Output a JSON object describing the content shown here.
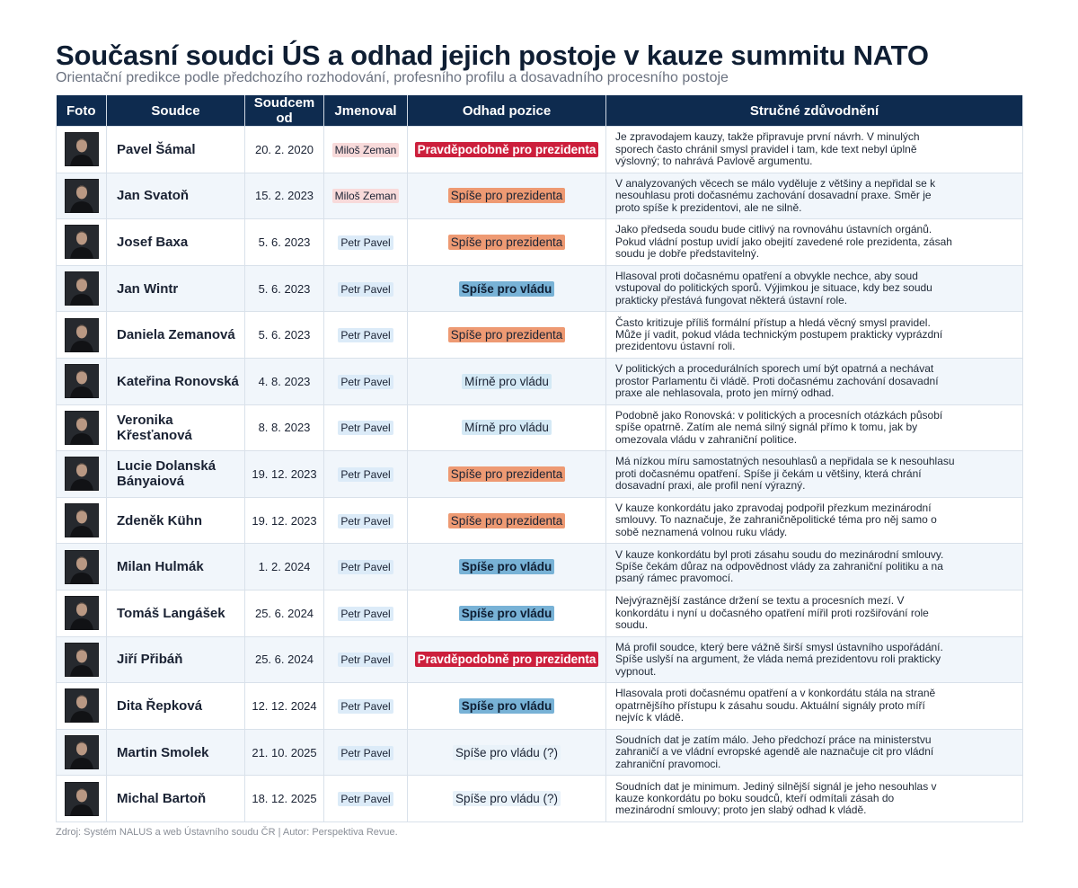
{
  "header": {
    "title": "Současní soudci ÚS a odhad jejich postoje v kauze summitu NATO",
    "subtitle": "Orientační predikce podle předchozího rozhodování, profesního profilu a dosavadního procesního postoje"
  },
  "table": {
    "columns": [
      "Foto",
      "Soudce",
      "Soudcem od",
      "Jmenoval",
      "Odhad pozice",
      "Stručné zdůvodnění"
    ],
    "rows": [
      {
        "name": "Pavel Šámal",
        "since": "20. 2. 2020",
        "appointed": "Miloš Zeman",
        "position": "Pravděpodobně pro prezidenta",
        "reason": "Je zpravodajem kauzy, takže připravuje první návrh. V minulých sporech často chránil smysl pravidel i tam, kde text nebyl úplně výslovný; to nahrává Pavlově argumentu."
      },
      {
        "name": "Jan Svatoň",
        "since": "15. 2. 2023",
        "appointed": "Miloš Zeman",
        "position": "Spíše pro prezidenta",
        "reason": "V analyzovaných věcech se málo vyděluje z většiny a nepřidal se k nesouhlasu proti dočasnému zachování dosavadní praxe. Směr je proto spíše k prezidentovi, ale ne silně."
      },
      {
        "name": "Josef Baxa",
        "since": "5. 6. 2023",
        "appointed": "Petr Pavel",
        "position": "Spíše pro prezidenta",
        "reason": "Jako předseda soudu bude citlivý na rovnováhu ústavních orgánů. Pokud vládní postup uvidí jako obejití zavedené role prezidenta, zásah soudu je dobře představitelný."
      },
      {
        "name": "Jan Wintr",
        "since": "5. 6. 2023",
        "appointed": "Petr Pavel",
        "position": "Spíše pro vládu",
        "reason": "Hlasoval proti dočasnému opatření a obvykle nechce, aby soud vstupoval do politických sporů. Výjimkou je situace, kdy bez soudu prakticky přestává fungovat některá ústavní role."
      },
      {
        "name": "Daniela Zemanová",
        "since": "5. 6. 2023",
        "appointed": "Petr Pavel",
        "position": "Spíše pro prezidenta",
        "reason": "Často kritizuje příliš formální přístup a hledá věcný smysl pravidel. Může jí vadit, pokud vláda technickým postupem prakticky vyprázdní prezidentovu ústavní roli."
      },
      {
        "name": "Kateřina Ronovská",
        "since": "4. 8. 2023",
        "appointed": "Petr Pavel",
        "position": "Mírně pro vládu",
        "reason": "V politických a procedurálních sporech umí být opatrná a nechávat prostor Parlamentu či vládě. Proti dočasnému zachování dosavadní praxe ale nehlasovala, proto jen mírný odhad."
      },
      {
        "name": "Veronika Křesťanová",
        "since": "8. 8. 2023",
        "appointed": "Petr Pavel",
        "position": "Mírně pro vládu",
        "reason": "Podobně jako Ronovská: v politických a procesních otázkách působí spíše opatrně. Zatím ale nemá silný signál přímo k tomu, jak by omezovala vládu v zahraniční politice."
      },
      {
        "name": "Lucie Dolanská Bányaiová",
        "since": "19. 12. 2023",
        "appointed": "Petr Pavel",
        "position": "Spíše pro prezidenta",
        "reason": "Má nízkou míru samostatných nesouhlasů a nepřidala se k nesouhlasu proti dočasnému opatření. Spíše ji čekám u většiny, která chrání dosavadní praxi, ale profil není výrazný."
      },
      {
        "name": "Zdeněk Kühn",
        "since": "19. 12. 2023",
        "appointed": "Petr Pavel",
        "position": "Spíše pro prezidenta",
        "reason": "V kauze konkordátu jako zpravodaj podpořil přezkum mezinárodní smlouvy. To naznačuje, že zahraničněpolitické téma pro něj samo o sobě neznamená volnou ruku vlády."
      },
      {
        "name": "Milan Hulmák",
        "since": "1. 2. 2024",
        "appointed": "Petr Pavel",
        "position": "Spíše pro vládu",
        "reason": "V kauze konkordátu byl proti zásahu soudu do mezinárodní smlouvy. Spíše čekám důraz na odpovědnost vlády za zahraniční politiku a na psaný rámec pravomocí."
      },
      {
        "name": "Tomáš Langášek",
        "since": "25. 6. 2024",
        "appointed": "Petr Pavel",
        "position": "Spíše pro vládu",
        "reason": "Nejvýraznější zastánce držení se textu a procesních mezí. V konkordátu i nyní u dočasného opatření mířil proti rozšiřování role soudu."
      },
      {
        "name": "Jiří Přibáň",
        "since": "25. 6. 2024",
        "appointed": "Petr Pavel",
        "position": "Pravděpodobně pro prezidenta",
        "reason": "Má profil soudce, který bere vážně širší smysl ústavního uspořádání. Spíše uslyší na argument, že vláda nemá prezidentovu roli prakticky vypnout."
      },
      {
        "name": "Dita Řepková",
        "since": "12. 12. 2024",
        "appointed": "Petr Pavel",
        "position": "Spíše pro vládu",
        "reason": "Hlasovala proti dočasnému opatření a v konkordátu stála na straně opatrnějšího přístupu k zásahu soudu. Aktuální signály proto míří nejvíc k vládě."
      },
      {
        "name": "Martin Smolek",
        "since": "21. 10. 2025",
        "appointed": "Petr Pavel",
        "position": "Spíše pro vládu (?)",
        "reason": "Soudních dat je zatím málo. Jeho předchozí práce na ministerstvu zahraničí a ve vládní evropské agendě ale naznačuje cit pro vládní zahraniční pravomoci."
      },
      {
        "name": "Michal Bartoň",
        "since": "18. 12. 2025",
        "appointed": "Petr Pavel",
        "position": "Spíše pro vládu (?)",
        "reason": "Soudních dat je minimum. Jediný silnější signál je jeho nesouhlas v kauze konkordátu po boku soudců, kteří odmítali zásah do mezinárodní smlouvy; proto jen slabý odhad k vládě."
      }
    ]
  },
  "footer": {
    "source": "Zdroj: Systém NALUS a web Ústavního soudu ČR | Autor: Perspektiva Revue."
  }
}
